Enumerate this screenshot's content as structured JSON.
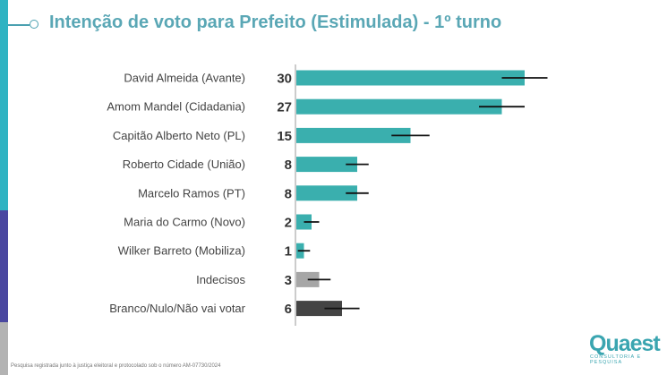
{
  "title": "Intenção de voto para Prefeito (Estimulada) - 1º turno",
  "footnote": "Pesquisa registrada junto à justiça eleitoral e protocolado sob o número AM-07730/2024",
  "logo": {
    "name": "Quaest",
    "tagline": "CONSULTORIA E PESQUISA"
  },
  "colors": {
    "candidate": "#3aafae",
    "undecided": "#a6a6a6",
    "blank": "#444444",
    "title": "#5aa7b5",
    "strip_top": "#2fb3c2",
    "strip_mid": "#4a47a0",
    "strip_bottom": "#b3b3b3"
  },
  "chart_data": {
    "type": "bar",
    "orientation": "horizontal",
    "title": "Intenção de voto para Prefeito (Estimulada) - 1º turno",
    "categories": [
      "David Almeida (Avante)",
      "Amom Mandel (Cidadania)",
      "Capitão Alberto Neto (PL)",
      "Roberto Cidade (União)",
      "Marcelo Ramos (PT)",
      "Maria do Carmo (Novo)",
      "Wilker Barreto (Mobiliza)",
      "Indecisos",
      "Branco/Nulo/Não vai votar"
    ],
    "values": [
      30,
      27,
      15,
      8,
      8,
      2,
      1,
      3,
      6
    ],
    "error_margin": [
      3,
      3,
      2.5,
      1.5,
      1.5,
      1,
      0.8,
      1.5,
      2.3
    ],
    "bar_colors": [
      "#3aafae",
      "#3aafae",
      "#3aafae",
      "#3aafae",
      "#3aafae",
      "#3aafae",
      "#3aafae",
      "#a6a6a6",
      "#444444"
    ],
    "grid": false
  }
}
